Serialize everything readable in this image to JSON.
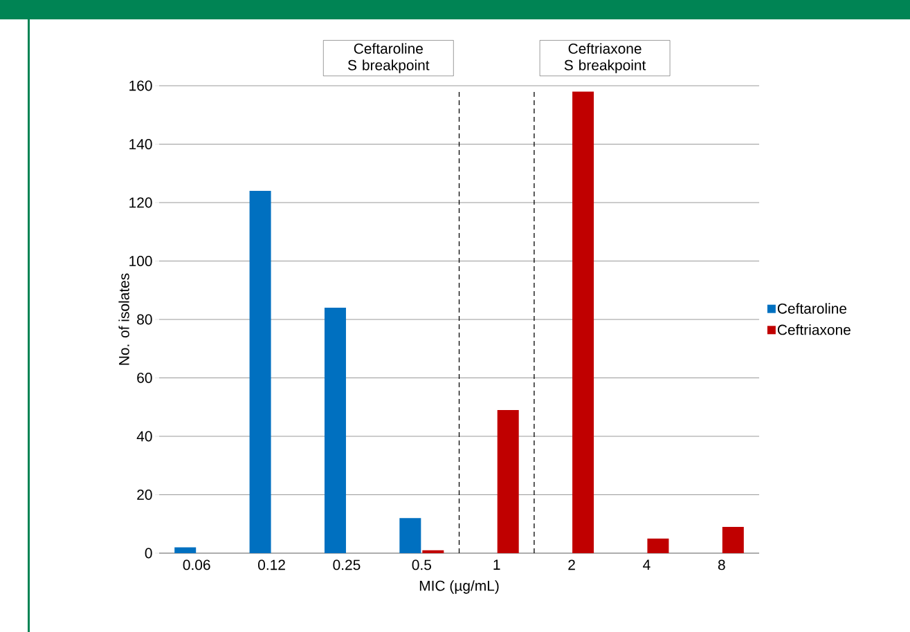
{
  "chart_data": {
    "type": "bar",
    "xlabel": "MIC (µg/mL)",
    "ylabel": "No. of isolates",
    "categories": [
      "0.06",
      "0.12",
      "0.25",
      "0.5",
      "1",
      "2",
      "4",
      "8"
    ],
    "series": [
      {
        "name": "Ceftaroline",
        "color": "#0070c0",
        "values": [
          2,
          124,
          84,
          12,
          0,
          0,
          0,
          0
        ]
      },
      {
        "name": "Ceftriaxone",
        "color": "#c00000",
        "values": [
          0,
          0,
          0,
          1,
          49,
          158,
          5,
          9
        ]
      }
    ],
    "ylim": [
      0,
      160
    ],
    "yticks": [
      0,
      20,
      40,
      60,
      80,
      100,
      120,
      140,
      160
    ],
    "grid": "y",
    "legend": "right",
    "annotations": [
      "Ceftaroline S breakpoint",
      "Ceftriaxone S breakpoint"
    ]
  }
}
